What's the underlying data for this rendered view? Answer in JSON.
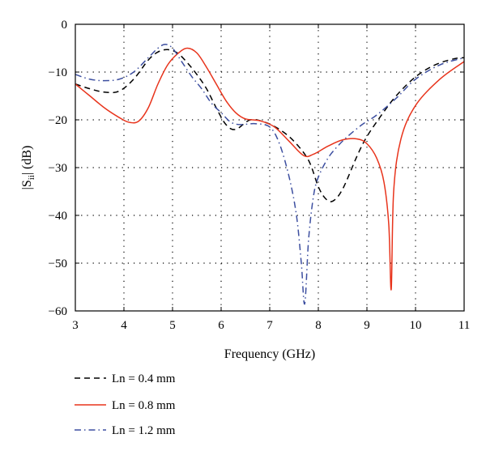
{
  "chart_data": {
    "type": "line",
    "title": "",
    "xlabel": "Frequency (GHz)",
    "ylabel_main": "|S",
    "ylabel_sub": "ii",
    "ylabel_tail": "| (dB)",
    "xlim": [
      3,
      11
    ],
    "ylim": [
      -60,
      0
    ],
    "xticks": [
      "3",
      "4",
      "5",
      "6",
      "7",
      "8",
      "9",
      "10",
      "11"
    ],
    "yticks": [
      "0",
      "−10",
      "−20",
      "−30",
      "−40",
      "−50",
      "−60"
    ],
    "grid": true,
    "legend_position": "bottom-left",
    "series": [
      {
        "name": "Ln = 0.4 mm",
        "color": "#000000",
        "style": "dashed",
        "x": [
          3.0,
          3.3,
          3.6,
          3.9,
          4.2,
          4.5,
          4.7,
          4.9,
          5.1,
          5.3,
          5.5,
          5.7,
          5.9,
          6.1,
          6.3,
          6.6,
          6.9,
          7.2,
          7.5,
          7.8,
          8.0,
          8.15,
          8.3,
          8.5,
          8.8,
          9.0,
          9.3,
          9.6,
          10.0,
          10.4,
          10.8,
          11.0
        ],
        "y": [
          -12.5,
          -13.5,
          -14.2,
          -14.0,
          -11.5,
          -7.5,
          -5.8,
          -5.3,
          -6.0,
          -8.0,
          -10.5,
          -13.5,
          -17.5,
          -21.0,
          -22.0,
          -20.0,
          -20.5,
          -22.0,
          -24.5,
          -28.5,
          -34.0,
          -36.5,
          -37.0,
          -34.5,
          -27.5,
          -23.5,
          -19.0,
          -15.0,
          -11.0,
          -8.5,
          -7.2,
          -7.0
        ]
      },
      {
        "name": "Ln = 0.8 mm",
        "color": "#e8341c",
        "style": "solid",
        "x": [
          3.0,
          3.3,
          3.6,
          3.9,
          4.1,
          4.3,
          4.5,
          4.7,
          4.9,
          5.1,
          5.3,
          5.5,
          5.7,
          5.9,
          6.1,
          6.3,
          6.5,
          6.8,
          7.1,
          7.4,
          7.7,
          7.9,
          8.2,
          8.5,
          8.8,
          9.0,
          9.2,
          9.35,
          9.45,
          9.5,
          9.55,
          9.7,
          10.0,
          10.5,
          11.0
        ],
        "y": [
          -12.5,
          -15.0,
          -17.5,
          -19.5,
          -20.5,
          -20.3,
          -17.5,
          -12.5,
          -8.5,
          -6.2,
          -5.0,
          -6.0,
          -9.0,
          -12.5,
          -16.0,
          -18.5,
          -19.8,
          -20.2,
          -21.5,
          -24.5,
          -27.5,
          -27.2,
          -25.5,
          -24.2,
          -24.0,
          -25.0,
          -28.0,
          -33.0,
          -42.0,
          -55.5,
          -35.0,
          -24.0,
          -17.0,
          -11.5,
          -7.8
        ]
      },
      {
        "name": "Ln = 1.2 mm",
        "color": "#3d4fa0",
        "style": "dashdot",
        "x": [
          3.0,
          3.3,
          3.6,
          3.9,
          4.2,
          4.5,
          4.7,
          4.85,
          5.0,
          5.2,
          5.4,
          5.6,
          5.8,
          6.0,
          6.2,
          6.4,
          6.7,
          7.0,
          7.2,
          7.4,
          7.55,
          7.65,
          7.72,
          7.8,
          7.9,
          8.0,
          8.2,
          8.4,
          8.6,
          8.9,
          9.2,
          9.6,
          10.0,
          10.5,
          11.0
        ],
        "y": [
          -10.5,
          -11.5,
          -11.8,
          -11.5,
          -10.0,
          -7.0,
          -5.0,
          -4.2,
          -5.0,
          -8.0,
          -11.0,
          -13.5,
          -16.5,
          -18.5,
          -20.5,
          -21.0,
          -20.8,
          -21.5,
          -25.0,
          -32.0,
          -40.0,
          -50.0,
          -58.5,
          -45.0,
          -36.0,
          -32.0,
          -28.0,
          -25.5,
          -23.5,
          -21.0,
          -19.0,
          -15.5,
          -11.5,
          -8.5,
          -7.0
        ]
      }
    ]
  }
}
